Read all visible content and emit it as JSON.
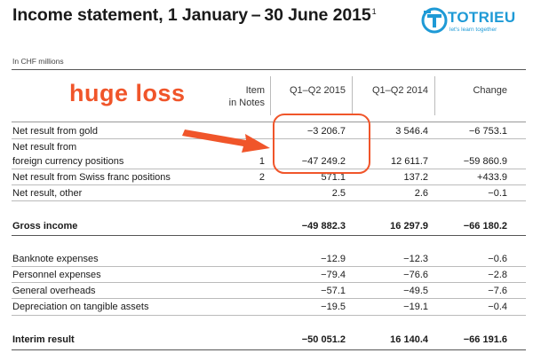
{
  "document": {
    "title": "Income statement, 1 January – 30 June 2015",
    "title_footnote": "1",
    "unit_note": "In CHF millions"
  },
  "logo": {
    "name": "TOTRIEU",
    "tagline": "let's learn together",
    "icon": "tt-logo-icon",
    "color": "#1e9ad6"
  },
  "annotation": {
    "text": "huge loss",
    "color": "#f0552a"
  },
  "table": {
    "headers": {
      "notes_line1": "Item",
      "notes_line2": "in Notes",
      "col1": "Q1–Q2 2015",
      "col2": "Q1–Q2 2014",
      "col3": "Change"
    },
    "rows": [
      {
        "label": "Net result from gold",
        "note": "",
        "v2015": "−3 206.7",
        "v2014": "3 546.4",
        "change": "−6 753.1"
      },
      {
        "label": "Net result from",
        "label_line2": "foreign currency positions",
        "note": "1",
        "v2015": "−47 249.2",
        "v2014": "12 611.7",
        "change": "−59 860.9"
      },
      {
        "label": "Net result from Swiss franc positions",
        "note": "2",
        "v2015": "571.1",
        "v2014": "137.2",
        "change": "+433.9"
      },
      {
        "label": "Net result, other",
        "note": "",
        "v2015": "2.5",
        "v2014": "2.6",
        "change": "−0.1"
      },
      {
        "label": "Gross income",
        "note": "",
        "v2015": "−49 882.3",
        "v2014": "16 297.9",
        "change": "−66 180.2"
      },
      {
        "label": "Banknote expenses",
        "note": "",
        "v2015": "−12.9",
        "v2014": "−12.3",
        "change": "−0.6"
      },
      {
        "label": "Personnel expenses",
        "note": "",
        "v2015": "−79.4",
        "v2014": "−76.6",
        "change": "−2.8"
      },
      {
        "label": "General overheads",
        "note": "",
        "v2015": "−57.1",
        "v2014": "−49.5",
        "change": "−7.6"
      },
      {
        "label": "Depreciation on tangible assets",
        "note": "",
        "v2015": "−19.5",
        "v2014": "−19.1",
        "change": "−0.4"
      },
      {
        "label": "Interim result",
        "note": "",
        "v2015": "−50 051.2",
        "v2014": "16 140.4",
        "change": "−66 191.6"
      }
    ]
  }
}
